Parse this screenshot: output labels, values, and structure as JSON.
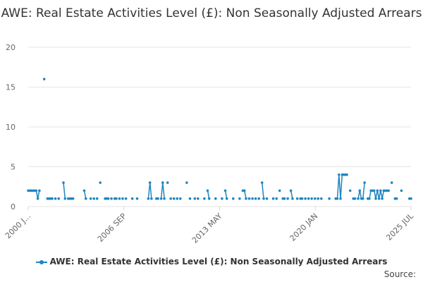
{
  "chart_data": {
    "type": "line",
    "title": "AWE: Real Estate Activities Level (£): Non Seasonally Adjusted Arrears",
    "xlabel": "",
    "ylabel": "",
    "ylim": [
      0,
      20
    ],
    "yticks": [
      0,
      5,
      10,
      15,
      20
    ],
    "x_tick_labels": [
      "2000 J...",
      "2006 SEP",
      "2013 MAY",
      "2020 JAN",
      "2025 JUL"
    ],
    "grid": "horizontal",
    "legend": "bottom",
    "series": [
      {
        "name": "AWE: Real Estate Activities Level (£): Non Seasonally Adjusted Arrears",
        "color": "#1f86c2",
        "points": [
          [
            0,
            2
          ],
          [
            1,
            2
          ],
          [
            2,
            2
          ],
          [
            3,
            2
          ],
          [
            4,
            2
          ],
          [
            5,
            2
          ],
          [
            6,
            1
          ],
          [
            7,
            2
          ],
          [
            10,
            16
          ],
          [
            12,
            1
          ],
          [
            13,
            1
          ],
          [
            14,
            1
          ],
          [
            15,
            1
          ],
          [
            17,
            1
          ],
          [
            19,
            1
          ],
          [
            22,
            3
          ],
          [
            23,
            1
          ],
          [
            25,
            1
          ],
          [
            26,
            1
          ],
          [
            27,
            1
          ],
          [
            28,
            1
          ],
          [
            35,
            2
          ],
          [
            36,
            1
          ],
          [
            39,
            1
          ],
          [
            41,
            1
          ],
          [
            43,
            1
          ],
          [
            45,
            3
          ],
          [
            48,
            1
          ],
          [
            49,
            1
          ],
          [
            50,
            1
          ],
          [
            52,
            1
          ],
          [
            54,
            1
          ],
          [
            55,
            1
          ],
          [
            57,
            1
          ],
          [
            59,
            1
          ],
          [
            61,
            1
          ],
          [
            65,
            1
          ],
          [
            68,
            1
          ],
          [
            75,
            1
          ],
          [
            76,
            3
          ],
          [
            77,
            1
          ],
          [
            80,
            1
          ],
          [
            81,
            1
          ],
          [
            83,
            1
          ],
          [
            84,
            3
          ],
          [
            85,
            1
          ],
          [
            87,
            3
          ],
          [
            89,
            1
          ],
          [
            91,
            1
          ],
          [
            93,
            1
          ],
          [
            95,
            1
          ],
          [
            99,
            3
          ],
          [
            101,
            1
          ],
          [
            104,
            1
          ],
          [
            106,
            1
          ],
          [
            110,
            1
          ],
          [
            112,
            2
          ],
          [
            113,
            1
          ],
          [
            117,
            1
          ],
          [
            121,
            1
          ],
          [
            123,
            2
          ],
          [
            124,
            1
          ],
          [
            128,
            1
          ],
          [
            132,
            1
          ],
          [
            134,
            2
          ],
          [
            135,
            2
          ],
          [
            136,
            1
          ],
          [
            138,
            1
          ],
          [
            140,
            1
          ],
          [
            142,
            1
          ],
          [
            144,
            1
          ],
          [
            146,
            3
          ],
          [
            147,
            1
          ],
          [
            149,
            1
          ],
          [
            153,
            1
          ],
          [
            155,
            1
          ],
          [
            157,
            2
          ],
          [
            159,
            1
          ],
          [
            160,
            1
          ],
          [
            162,
            1
          ],
          [
            164,
            2
          ],
          [
            165,
            1
          ],
          [
            168,
            1
          ],
          [
            170,
            1
          ],
          [
            171,
            1
          ],
          [
            173,
            1
          ],
          [
            175,
            1
          ],
          [
            177,
            1
          ],
          [
            179,
            1
          ],
          [
            181,
            1
          ],
          [
            183,
            1
          ],
          [
            188,
            1
          ],
          [
            192,
            1
          ],
          [
            193,
            1
          ],
          [
            194,
            4
          ],
          [
            195,
            1
          ],
          [
            196,
            4
          ],
          [
            197,
            4
          ],
          [
            198,
            4
          ],
          [
            199,
            4
          ],
          [
            201,
            2
          ],
          [
            203,
            1
          ],
          [
            204,
            1
          ],
          [
            206,
            1
          ],
          [
            207,
            2
          ],
          [
            208,
            1
          ],
          [
            209,
            1
          ],
          [
            210,
            3
          ],
          [
            212,
            1
          ],
          [
            213,
            1
          ],
          [
            214,
            2
          ],
          [
            215,
            2
          ],
          [
            216,
            2
          ],
          [
            217,
            1
          ],
          [
            218,
            2
          ],
          [
            219,
            1
          ],
          [
            220,
            2
          ],
          [
            221,
            1
          ],
          [
            222,
            2
          ],
          [
            223,
            2
          ],
          [
            224,
            2
          ],
          [
            225,
            2
          ],
          [
            227,
            3
          ],
          [
            229,
            1
          ],
          [
            230,
            1
          ],
          [
            233,
            2
          ],
          [
            238,
            1
          ],
          [
            239,
            1
          ]
        ]
      }
    ]
  },
  "legend": {
    "label": "AWE: Real Estate Activities Level (£): Non Seasonally Adjusted Arrears"
  },
  "source_label": "Source:"
}
